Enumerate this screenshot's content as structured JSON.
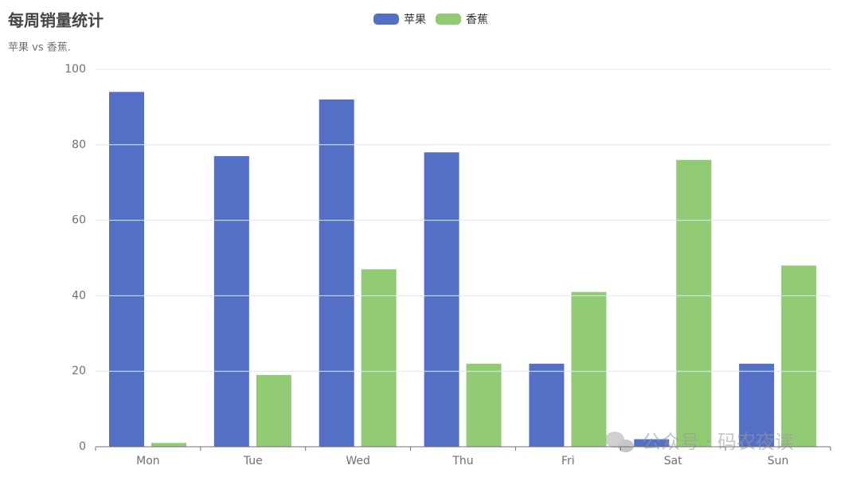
{
  "chart_data": {
    "type": "bar",
    "title": "每周销量统计",
    "subtitle": "苹果 vs 香蕉.",
    "categories": [
      "Mon",
      "Tue",
      "Wed",
      "Thu",
      "Fri",
      "Sat",
      "Sun"
    ],
    "series": [
      {
        "name": "苹果",
        "color": "#5470c6",
        "values": [
          94,
          77,
          92,
          78,
          22,
          2,
          22
        ]
      },
      {
        "name": "香蕉",
        "color": "#91cc75",
        "values": [
          1,
          19,
          47,
          22,
          41,
          76,
          48
        ]
      }
    ],
    "ylim": [
      0,
      100
    ],
    "yticks": [
      0,
      20,
      40,
      60,
      80,
      100
    ],
    "grid": true,
    "legend": "top",
    "watermark": "公众号 · 码农夜读"
  }
}
